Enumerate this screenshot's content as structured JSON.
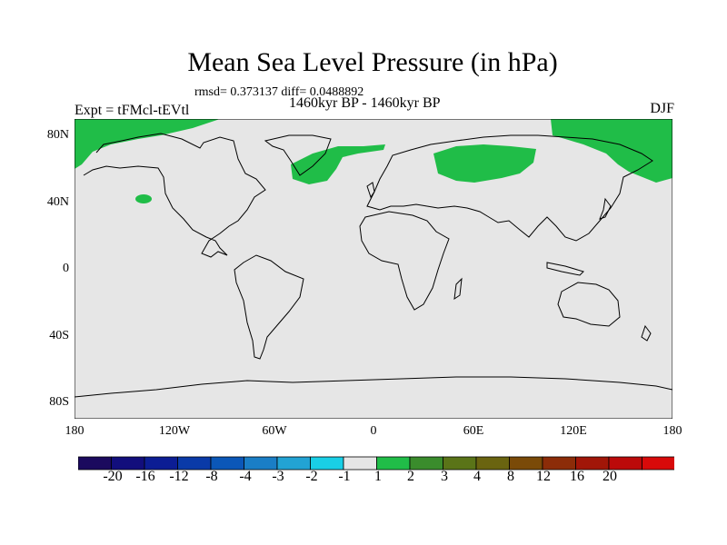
{
  "title": "Mean Sea Level Pressure (in hPa)",
  "stats": "rmsd= 0.373137 diff= 0.0488892",
  "experiment": "Expt = tFMcl-tEVtl",
  "period": "1460kyr BP - 1460kyr BP",
  "season": "DJF",
  "map": {
    "background_color": "#e6e6e6",
    "positive_anomaly_color": "#20bd48",
    "coastline_color": "#000000",
    "lat_ticks": [
      "80N",
      "40N",
      "0",
      "40S",
      "80S"
    ],
    "lon_ticks": [
      "180",
      "120W",
      "60W",
      "0",
      "60E",
      "120E",
      "180"
    ]
  },
  "colorbar": {
    "colors": [
      "#1b0a5e",
      "#120e7c",
      "#0c1d94",
      "#0a3aa8",
      "#0b57b8",
      "#1a7ec6",
      "#22a3d4",
      "#19cfe6",
      "#e6e6e6",
      "#20bd48",
      "#3a8c2c",
      "#5a7418",
      "#6a6410",
      "#7a4a08",
      "#8c2c08",
      "#a11608",
      "#bb0a0a",
      "#d80a0a"
    ],
    "labels": [
      "-20",
      "-16",
      "-12",
      "-8",
      "-4",
      "-3",
      "-2",
      "-1",
      "1",
      "2",
      "3",
      "4",
      "8",
      "12",
      "16",
      "20"
    ]
  }
}
